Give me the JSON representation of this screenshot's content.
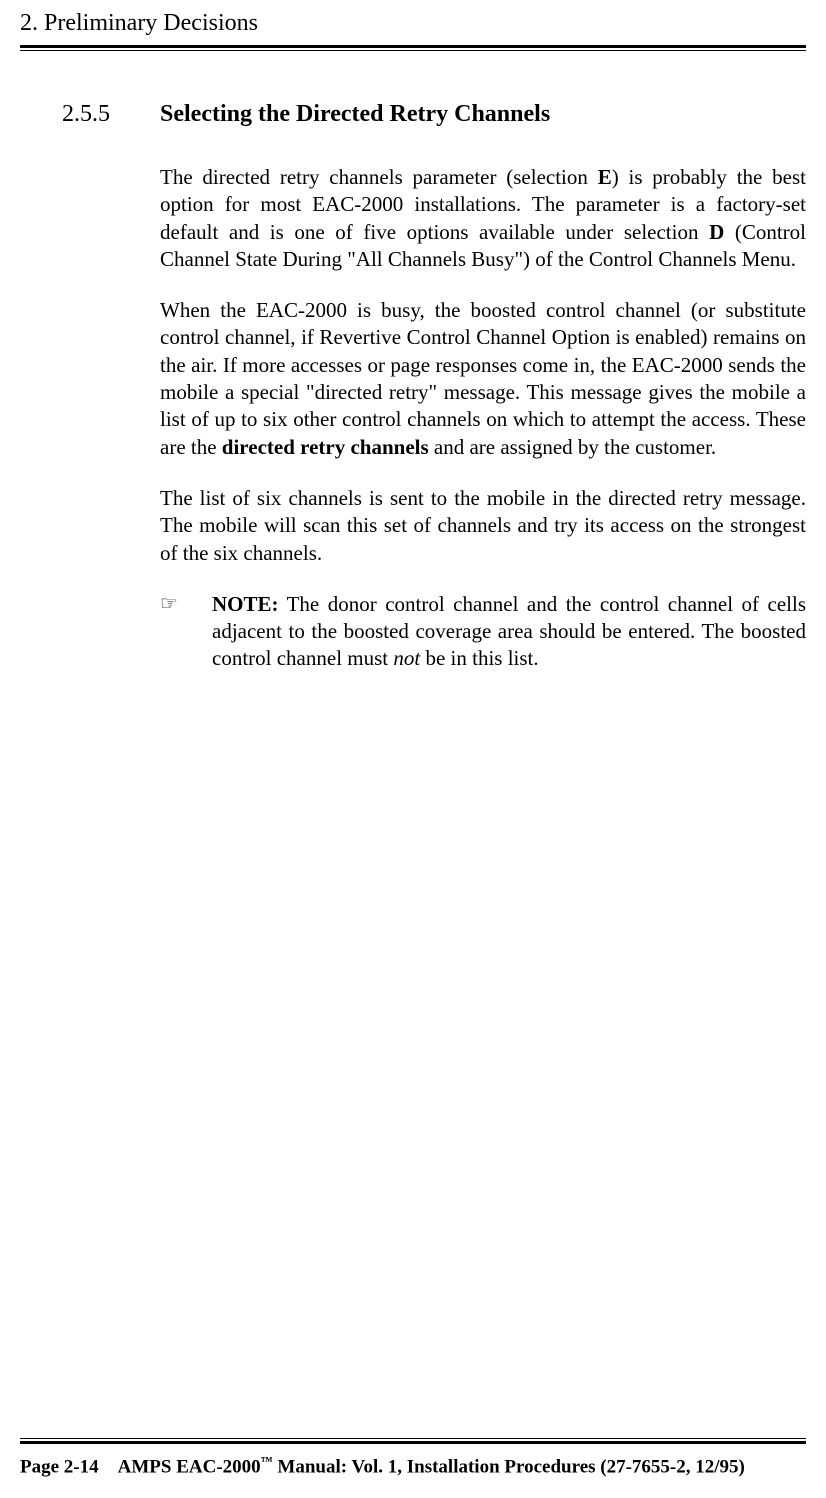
{
  "header": {
    "chapter": "2.  Preliminary Decisions"
  },
  "section": {
    "number": "2.5.5",
    "title": "Selecting the Directed Retry Channels"
  },
  "paragraphs": {
    "p1_part1": "The directed retry channels parameter (selection ",
    "p1_sel1": "E",
    "p1_part2": ") is probably the best option for most EAC-2000 installations.  The parameter is a factory-set default and is one of five options available under selection ",
    "p1_sel2": "D",
    "p1_part3": " (Control Channel State During \"All Channels Busy\") of the Control Channels Menu.",
    "p2_part1": "When the EAC-2000 is busy, the boosted control channel (or substitute control channel, if Revertive Control Channel Option is enabled) remains on the air.  If more accesses or page responses come in, the EAC-2000 sends the mobile a special \"directed retry\" message.  This message gives the mobile a list of up to six other control channels on which to attempt the access.  These are the ",
    "p2_bold": "directed retry channels",
    "p2_part2": " and are assigned by the customer.",
    "p3": "The list of six channels is sent to the mobile in the directed retry message.  The mobile will scan this set of channels and try its access on the strongest of the six channels."
  },
  "note": {
    "pointer": "☞",
    "label": "NOTE:",
    "text_part1": "  The donor control channel and the control channel of cells adjacent to the boosted coverage area should be entered.  The boosted control channel must ",
    "italic": "not",
    "text_part2": " be in this list."
  },
  "footer": {
    "page": "Page 2-14",
    "product": "AMPS EAC-2000",
    "tm": "™",
    "rest": " Manual:  Vol. 1, Installation Procedures (27-7655-2, 12/95)"
  }
}
